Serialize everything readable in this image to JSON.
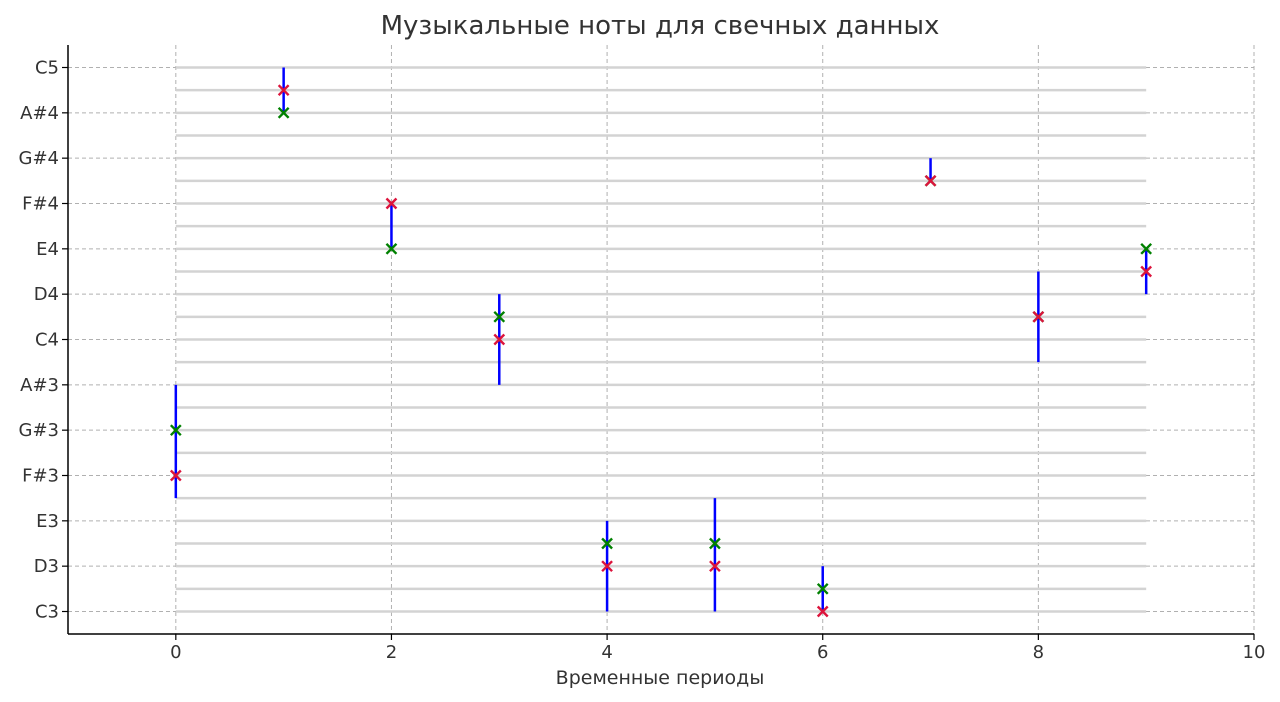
{
  "chart_data": {
    "type": "scatter",
    "title": "Музыкальные ноты для свечных данных",
    "xlabel": "Временные периоды",
    "ylabel": "",
    "xlim": [
      -1,
      10
    ],
    "x_ticks": [
      0,
      2,
      4,
      6,
      8,
      10
    ],
    "notes": [
      "C3",
      "C#3",
      "D3",
      "D#3",
      "E3",
      "F3",
      "F#3",
      "G3",
      "G#3",
      "A3",
      "A#3",
      "B3",
      "C4",
      "C#4",
      "D4",
      "D#4",
      "E4",
      "F4",
      "F#4",
      "G4",
      "G#4",
      "A4",
      "A#4",
      "B4",
      "C5"
    ],
    "y_tick_labels": [
      "C3",
      "D3",
      "E3",
      "F#3",
      "G#3",
      "A#3",
      "C4",
      "D4",
      "E4",
      "F#4",
      "G#4",
      "A#4",
      "C5"
    ],
    "grid": true,
    "staff_lines": true,
    "candles": [
      {
        "x": 0,
        "low": "F3",
        "high": "A#3",
        "open": "F#3",
        "close": "G#3"
      },
      {
        "x": 1,
        "low": "A#4",
        "high": "C5",
        "open": "B4",
        "close": "A#4"
      },
      {
        "x": 2,
        "low": "E4",
        "high": "F#4",
        "open": "F#4",
        "close": "E4"
      },
      {
        "x": 3,
        "low": "A#3",
        "high": "D4",
        "open": "C4",
        "close": "C#4"
      },
      {
        "x": 4,
        "low": "C3",
        "high": "E3",
        "open": "D3",
        "close": "D#3"
      },
      {
        "x": 5,
        "low": "C3",
        "high": "F3",
        "open": "D3",
        "close": "D#3"
      },
      {
        "x": 6,
        "low": "C3",
        "high": "D3",
        "open": "C3",
        "close": "C#3"
      },
      {
        "x": 7,
        "low": "G4",
        "high": "G#4",
        "open": "G4",
        "close": "G4"
      },
      {
        "x": 8,
        "low": "B3",
        "high": "D#4",
        "open": "C#4",
        "close": "C#4"
      },
      {
        "x": 9,
        "low": "D4",
        "high": "E4",
        "open": "D#4",
        "close": "E4"
      }
    ],
    "colors": {
      "wick": "#0000ff",
      "open_marker": "#dc143c",
      "close_marker": "#008000",
      "grid": "#b0b0b0",
      "staff": "#d3d3d3",
      "text": "#333333"
    }
  }
}
